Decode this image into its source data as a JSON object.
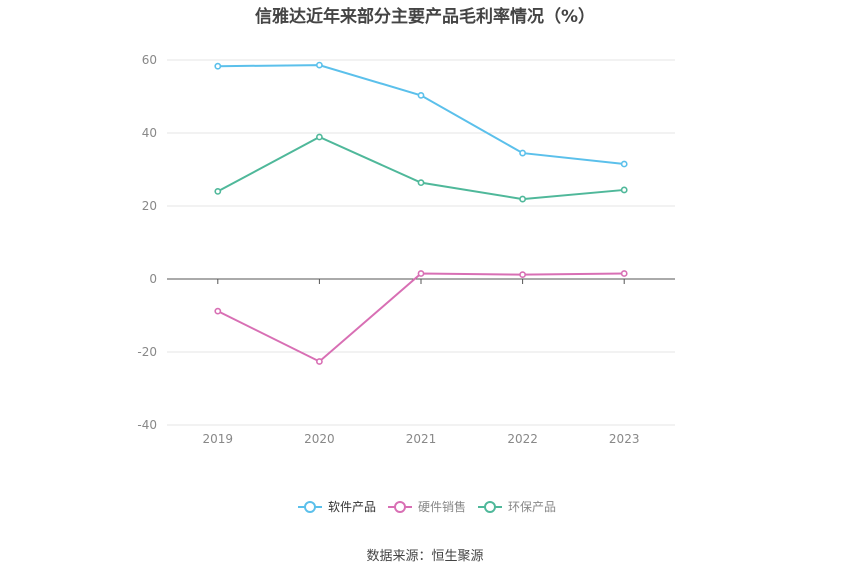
{
  "chart_data": {
    "type": "line",
    "title": "信雅达近年来部分主要产品毛利率情况（%）",
    "xlabel": "",
    "ylabel": "",
    "categories": [
      "2019",
      "2020",
      "2021",
      "2022",
      "2023"
    ],
    "ylim": [
      -40,
      60
    ],
    "yticks": [
      -40,
      -20,
      0,
      20,
      40,
      60
    ],
    "grid": true,
    "legend_position": "bottom-center",
    "series": [
      {
        "name": "软件产品",
        "color": "#5bc0eb",
        "values": [
          58.3,
          58.6,
          50.3,
          34.5,
          31.5
        ]
      },
      {
        "name": "硬件销售",
        "color": "#d86fb4",
        "values": [
          -8.8,
          -22.6,
          1.5,
          1.2,
          1.5
        ]
      },
      {
        "name": "环保产品",
        "color": "#4fb89a",
        "values": [
          24.0,
          38.9,
          26.4,
          21.9,
          24.4
        ]
      }
    ]
  },
  "source_text": "数据来源：恒生聚源"
}
